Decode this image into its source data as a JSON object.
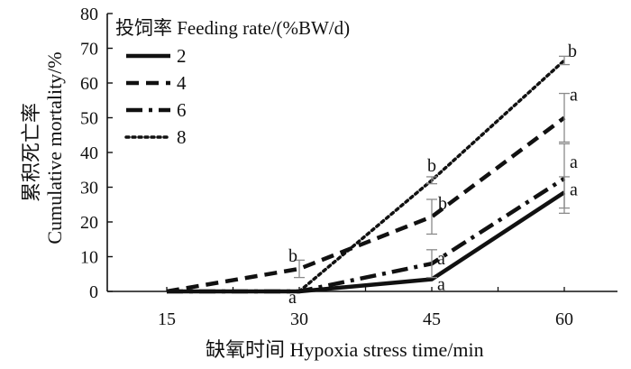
{
  "chart_data": {
    "type": "line",
    "xlabel": "缺氧时间  Hypoxia stress time/min",
    "ylabel_cn": "累积死亡率",
    "ylabel_en": "Cumulative mortality/%",
    "x": [
      15,
      30,
      45,
      60
    ],
    "ylim": [
      0,
      80
    ],
    "yticks": [
      0,
      10,
      20,
      30,
      40,
      50,
      60,
      70,
      80
    ],
    "legend": {
      "title": "投饲率 Feeding rate/(%BW/d)",
      "placement": "top-left"
    },
    "series": [
      {
        "name": "2",
        "style": "solid",
        "values": [
          0,
          0,
          3.5,
          28.5
        ],
        "error": [
          null,
          null,
          0,
          4.5
        ],
        "labels": [
          "",
          "",
          "a",
          "a"
        ]
      },
      {
        "name": "4",
        "style": "dashed",
        "values": [
          0,
          6.5,
          21.5,
          50
        ],
        "error": [
          null,
          2.5,
          5,
          7
        ],
        "labels": [
          "",
          "b",
          "b",
          "a"
        ]
      },
      {
        "name": "6",
        "style": "dashdot",
        "values": [
          0,
          0,
          8,
          32.5
        ],
        "error": [
          null,
          null,
          4,
          10
        ],
        "labels": [
          "",
          "a",
          "a",
          "a"
        ]
      },
      {
        "name": "8",
        "style": "dotted",
        "values": [
          null,
          0,
          32,
          66.5
        ],
        "error": [
          null,
          null,
          1,
          1.2
        ],
        "labels": [
          "",
          "",
          "b",
          "b"
        ]
      }
    ],
    "grid": false,
    "colors": {
      "line": "#111111",
      "errorbar": "#8a8a8a"
    }
  }
}
